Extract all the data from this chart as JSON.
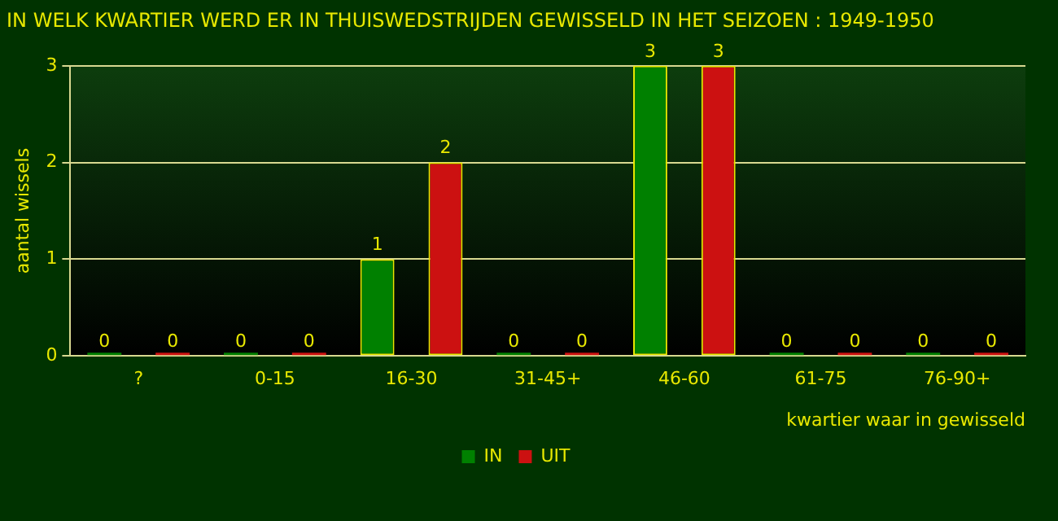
{
  "chart_data": {
    "type": "bar",
    "title": "IN WELK KWARTIER WERD ER IN THUISWEDSTRIJDEN GEWISSELD IN HET SEIZOEN : 1949-1950",
    "xlabel": "kwartier waar in gewisseld",
    "ylabel": "aantal wissels",
    "categories": [
      "?",
      "0-15",
      "16-30",
      "31-45+",
      "46-60",
      "61-75",
      "76-90+"
    ],
    "series": [
      {
        "name": "IN",
        "color": "#008000",
        "values": [
          0,
          0,
          1,
          0,
          3,
          0,
          0
        ]
      },
      {
        "name": "UIT",
        "color": "#cc1111",
        "values": [
          0,
          0,
          2,
          0,
          3,
          0,
          0
        ]
      }
    ],
    "ylim": [
      0,
      3
    ],
    "yticks": [
      0,
      1,
      2,
      3
    ],
    "grid": "y",
    "legend": "bottom",
    "data_labels": true
  }
}
